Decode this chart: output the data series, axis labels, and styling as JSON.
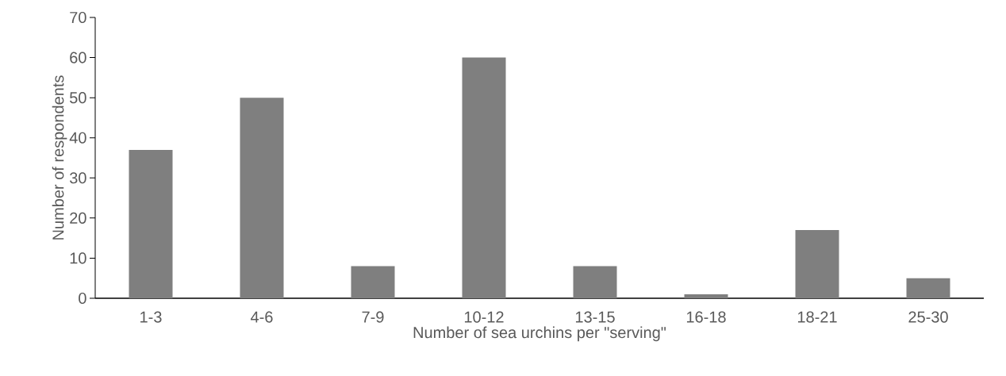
{
  "chart_data": {
    "type": "bar",
    "xlabel": "Number of sea urchins per \"serving\"",
    "ylabel": "Number of respondents",
    "categories": [
      "1-3",
      "4-6",
      "7-9",
      "10-12",
      "13-15",
      "16-18",
      "18-21",
      "25-30"
    ],
    "values": [
      37,
      50,
      8,
      60,
      8,
      1,
      17,
      5
    ],
    "color": "#7f7f7f",
    "ylim": [
      0,
      70
    ],
    "yticks": [
      0,
      10,
      20,
      30,
      40,
      50,
      60,
      70
    ],
    "grid": false
  }
}
